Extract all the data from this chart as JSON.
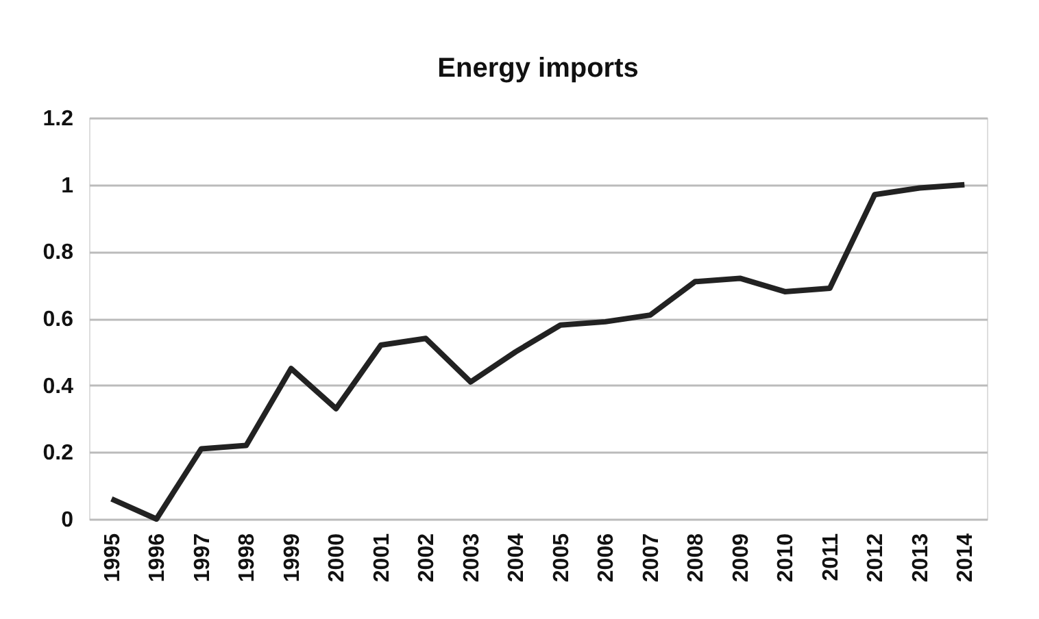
{
  "chart_data": {
    "type": "line",
    "title": "Energy imports",
    "categories": [
      "1995",
      "1996",
      "1997",
      "1998",
      "1999",
      "2000",
      "2001",
      "2002",
      "2003",
      "2004",
      "2005",
      "2006",
      "2007",
      "2008",
      "2009",
      "2010",
      "2011",
      "2012",
      "2013",
      "2014"
    ],
    "series": [
      {
        "color": "#222222",
        "values": [
          0.06,
          0.0,
          0.21,
          0.22,
          0.45,
          0.33,
          0.52,
          0.54,
          0.41,
          0.5,
          0.58,
          0.59,
          0.61,
          0.71,
          0.72,
          0.68,
          0.69,
          0.97,
          0.99,
          1.0
        ]
      }
    ],
    "ylim": [
      0,
      1.2
    ],
    "yticks": [
      0,
      0.2,
      0.4,
      0.6,
      0.8,
      1,
      1.2
    ],
    "grid": "y",
    "marker": "none",
    "line_style": "solid"
  }
}
